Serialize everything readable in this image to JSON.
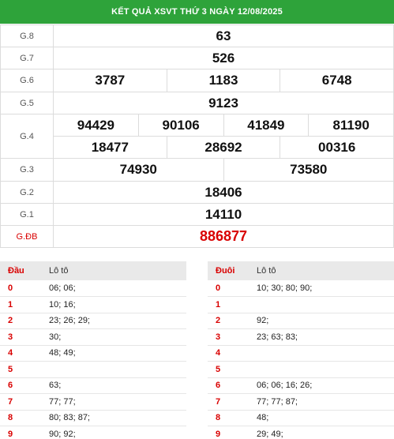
{
  "title": "KẾT QUẢ XSVT THỨ 3 NGÀY 12/08/2025",
  "prizes": {
    "g8": {
      "label": "G.8",
      "numbers": [
        "63"
      ]
    },
    "g7": {
      "label": "G.7",
      "numbers": [
        "526"
      ]
    },
    "g6": {
      "label": "G.6",
      "numbers": [
        "3787",
        "1183",
        "6748"
      ]
    },
    "g5": {
      "label": "G.5",
      "numbers": [
        "9123"
      ]
    },
    "g4": {
      "label": "G.4",
      "numbers": [
        "94429",
        "90106",
        "41849",
        "81190",
        "18477",
        "28692",
        "00316"
      ]
    },
    "g3": {
      "label": "G.3",
      "numbers": [
        "74930",
        "73580"
      ]
    },
    "g2": {
      "label": "G.2",
      "numbers": [
        "18406"
      ]
    },
    "g1": {
      "label": "G.1",
      "numbers": [
        "14110"
      ]
    },
    "gdb": {
      "label": "G.ĐB",
      "numbers": [
        "886877"
      ]
    }
  },
  "head_table": {
    "col1": "Đầu",
    "col2": "Lô tô",
    "rows": [
      {
        "idx": "0",
        "nums": "06; 06;"
      },
      {
        "idx": "1",
        "nums": "10; 16;"
      },
      {
        "idx": "2",
        "nums": "23; 26; 29;"
      },
      {
        "idx": "3",
        "nums": "30;"
      },
      {
        "idx": "4",
        "nums": "48; 49;"
      },
      {
        "idx": "5",
        "nums": ""
      },
      {
        "idx": "6",
        "nums": "63;"
      },
      {
        "idx": "7",
        "nums": "77; 77;"
      },
      {
        "idx": "8",
        "nums": "80; 83; 87;"
      },
      {
        "idx": "9",
        "nums": "90; 92;"
      }
    ]
  },
  "tail_table": {
    "col1": "Đuôi",
    "col2": "Lô tô",
    "rows": [
      {
        "idx": "0",
        "nums": "10; 30; 80; 90;"
      },
      {
        "idx": "1",
        "nums": ""
      },
      {
        "idx": "2",
        "nums": "92;"
      },
      {
        "idx": "3",
        "nums": "23; 63; 83;"
      },
      {
        "idx": "4",
        "nums": ""
      },
      {
        "idx": "5",
        "nums": ""
      },
      {
        "idx": "6",
        "nums": "06; 06; 16; 26;"
      },
      {
        "idx": "7",
        "nums": "77; 77; 87;"
      },
      {
        "idx": "8",
        "nums": "48;"
      },
      {
        "idx": "9",
        "nums": "29; 49;"
      }
    ]
  },
  "colors": {
    "header_bg": "#2ea33a",
    "special_prize": "#d90000",
    "index": "#d90000"
  }
}
